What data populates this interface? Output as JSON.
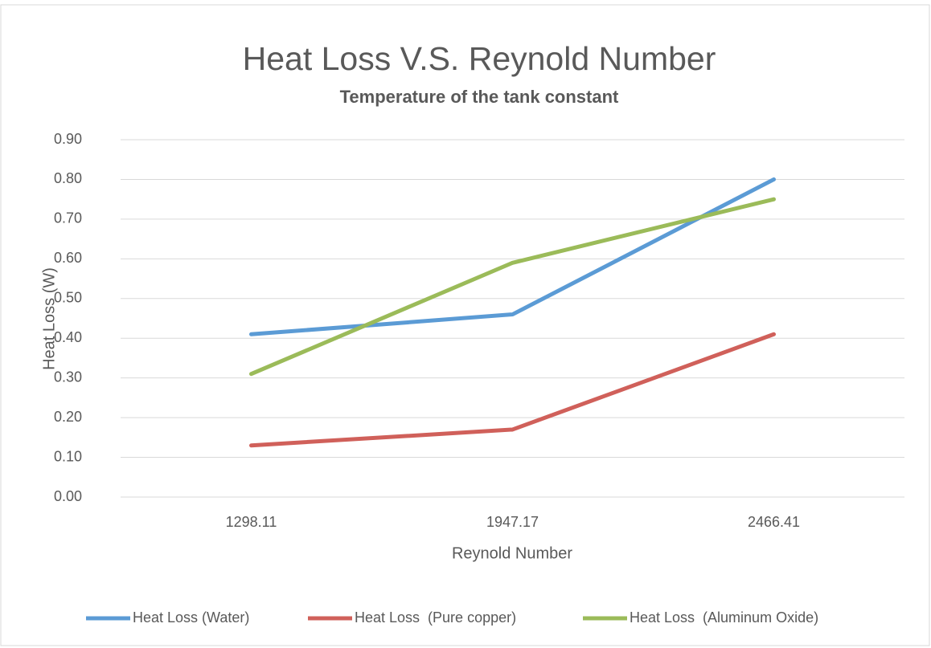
{
  "chart_data": {
    "type": "line",
    "title": "Heat Loss V.S. Reynold Number",
    "subtitle": "Temperature of the tank constant",
    "x_label": "Reynold Number",
    "y_label": "Heat Loss (W)",
    "categories": [
      "1298.11",
      "1947.17",
      "2466.41"
    ],
    "series": [
      {
        "name": "Heat Loss (Water)",
        "color": "#5b9bd5",
        "values": [
          0.41,
          0.46,
          0.8
        ]
      },
      {
        "name": "Heat Loss  (Pure copper)",
        "color": "#d0605a",
        "values": [
          0.13,
          0.17,
          0.41
        ]
      },
      {
        "name": "Heat Loss  (Aluminum Oxide)",
        "color": "#9bbb59",
        "values": [
          0.31,
          0.59,
          0.75
        ]
      }
    ],
    "ylim": [
      0,
      0.9
    ],
    "yticks": [
      {
        "value": 0,
        "label": "0.00"
      },
      {
        "value": 0.1,
        "label": "0.10"
      },
      {
        "value": 0.2,
        "label": "0.20"
      },
      {
        "value": 0.3,
        "label": "0.30"
      },
      {
        "value": 0.4,
        "label": "0.40"
      },
      {
        "value": 0.5,
        "label": "0.50"
      },
      {
        "value": 0.6,
        "label": "0.60"
      },
      {
        "value": 0.7,
        "label": "0.70"
      },
      {
        "value": 0.8,
        "label": "0.80"
      },
      {
        "value": 0.9,
        "label": "0.90"
      }
    ],
    "grid": true,
    "legend": "bottom"
  }
}
